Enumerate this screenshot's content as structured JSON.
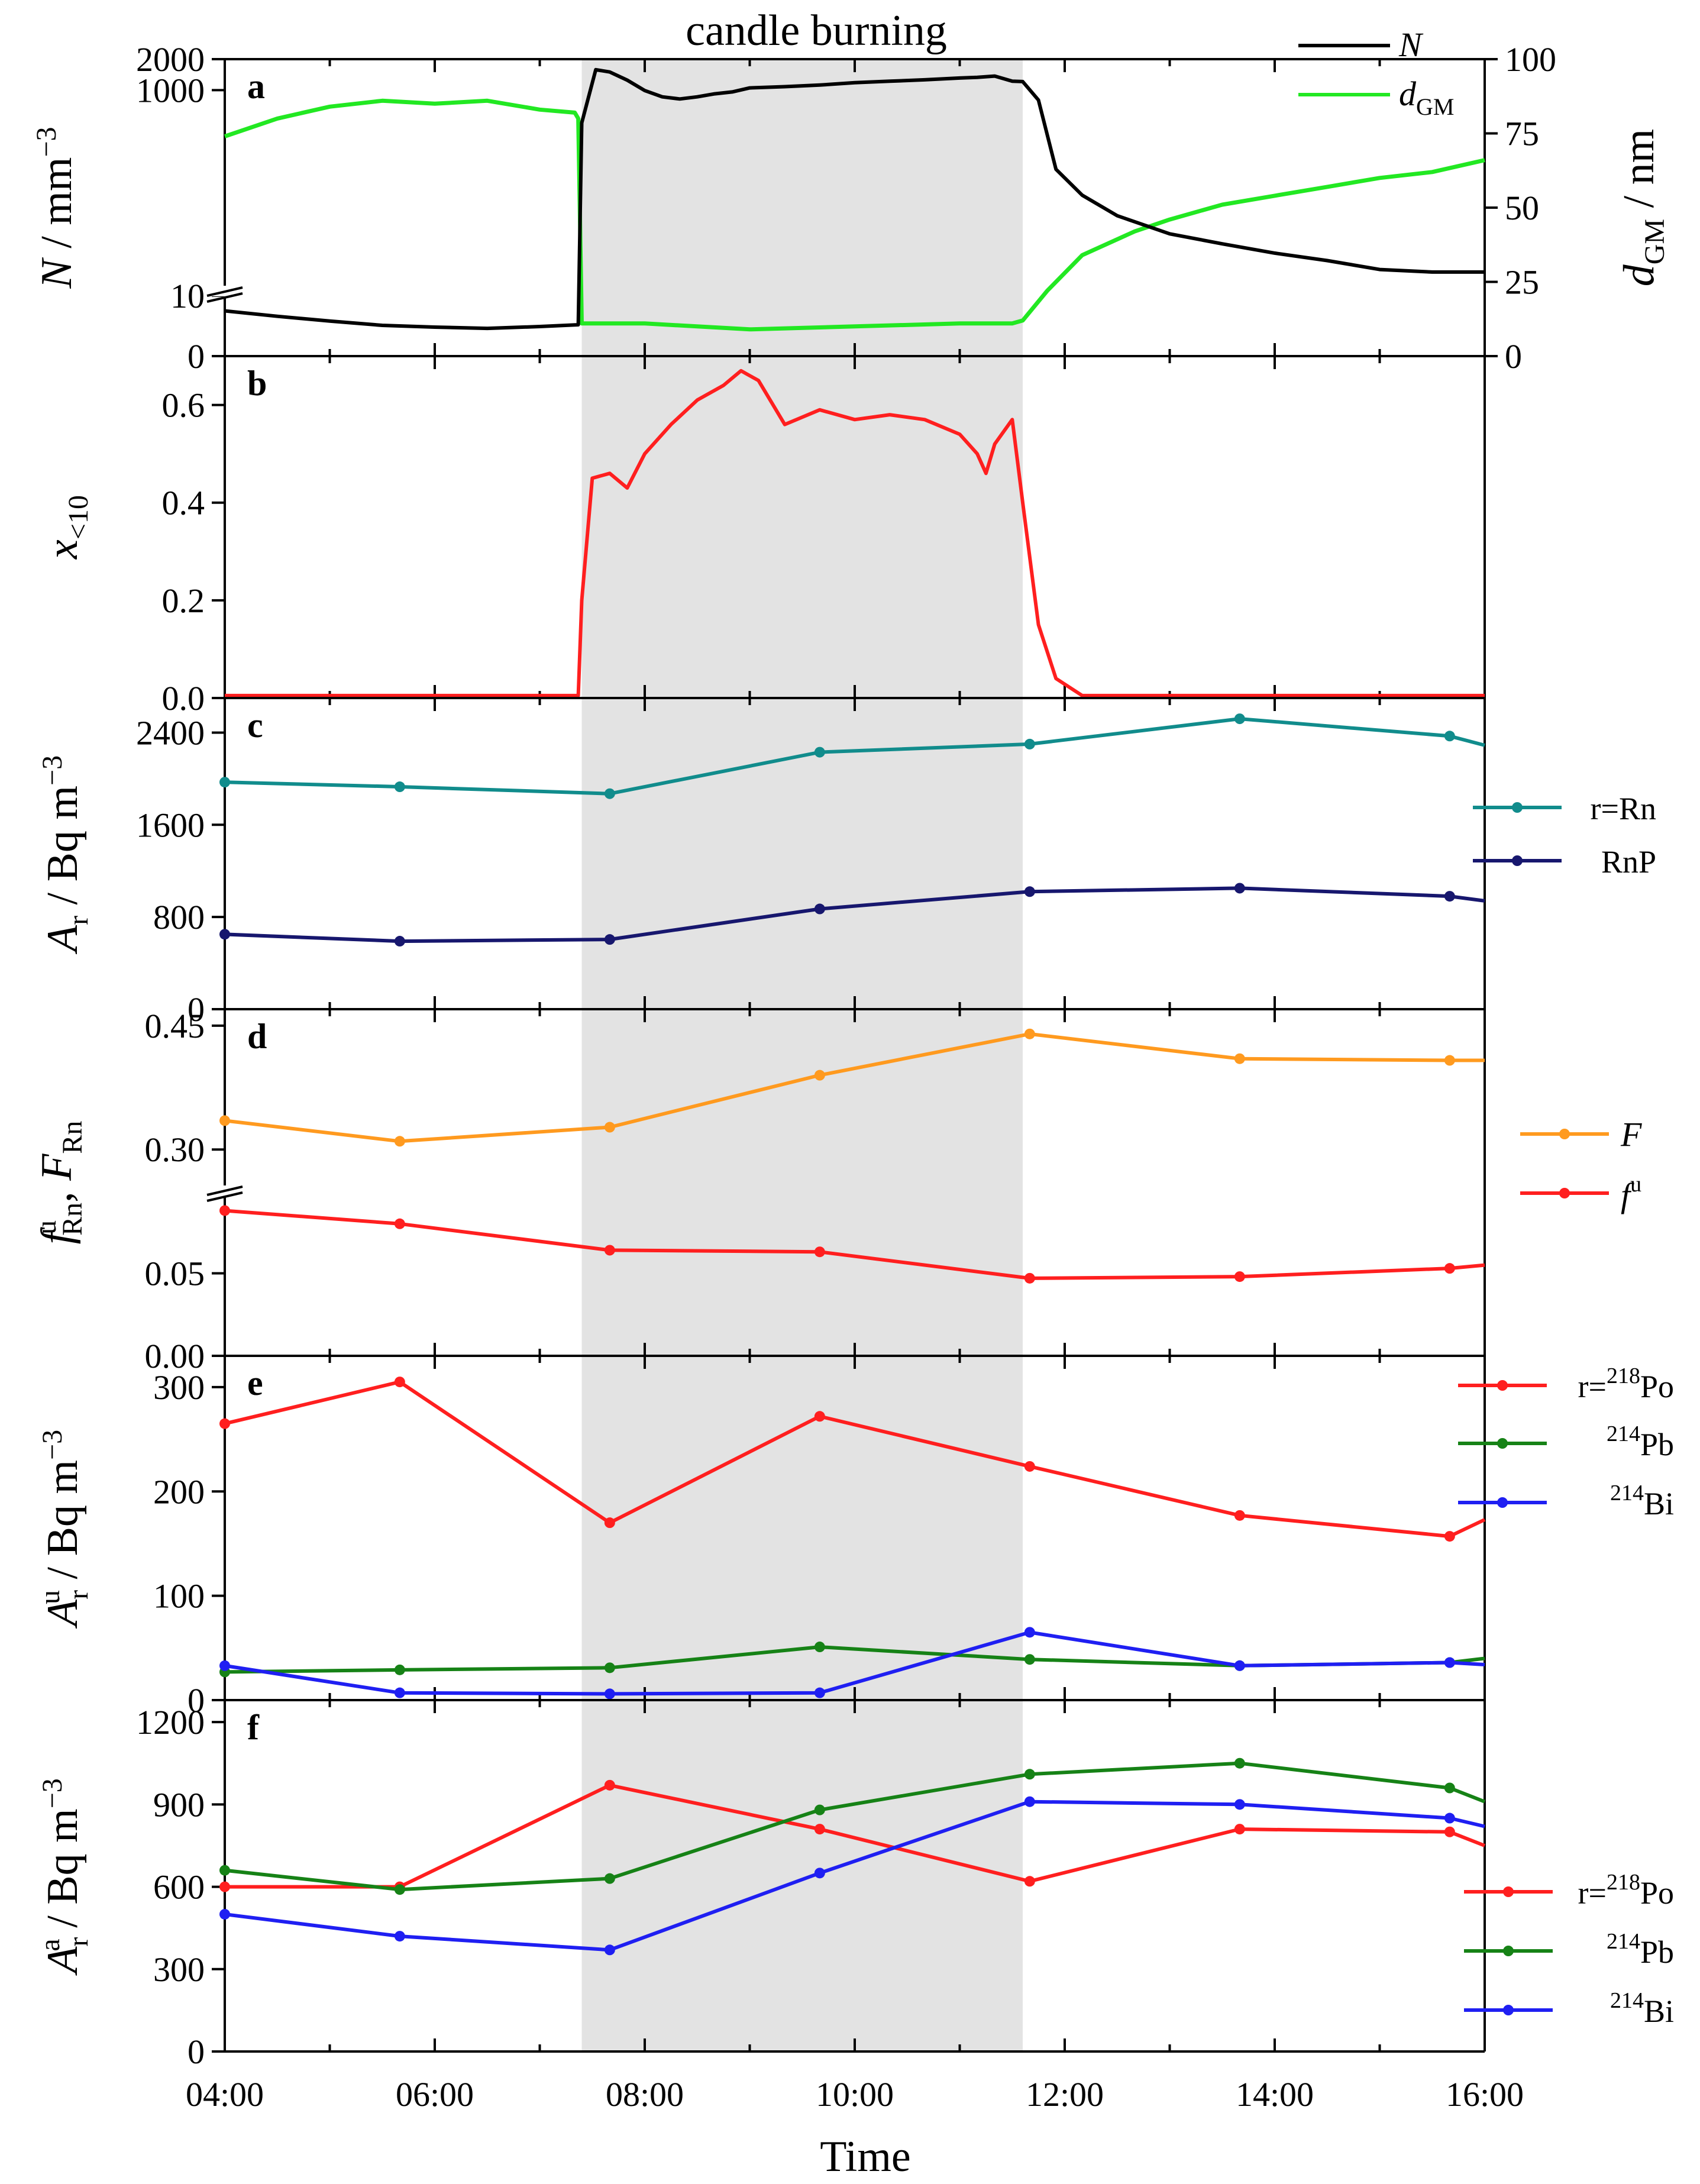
{
  "figure": {
    "shading_label": "candle burning",
    "xlabel": "Time",
    "x_ticks": [
      "04:00",
      "06:00",
      "08:00",
      "10:00",
      "12:00",
      "14:00",
      "16:00"
    ],
    "colors": {
      "shade": "#e3e3e3",
      "black": "#000000",
      "green": "#22e822",
      "red": "#ff1f1f",
      "teal": "#118c8c",
      "navy": "#17176e",
      "orange": "#ff9a1f",
      "dgreen": "#168216",
      "blue": "#1f1ff2"
    }
  },
  "chart_data": [
    {
      "panel": "a",
      "type": "line",
      "xlabel": "Time",
      "x_range": [
        "04:00",
        "16:00"
      ],
      "shaded_interval": [
        "07:24",
        "11:36"
      ],
      "y_axis_break": true,
      "ylabel_left": {
        "main": "N",
        "rest": " / mm",
        "sup": "−3"
      },
      "yticks_left": [
        "0",
        "10",
        "1000",
        "2000"
      ],
      "ylabel_right": {
        "main": "d",
        "sub": "GM",
        "rest": " / nm"
      },
      "yticks_right": [
        "0",
        "25",
        "50",
        "75",
        "100"
      ],
      "ylim_right": [
        0,
        100
      ],
      "legend": [
        {
          "name": "N",
          "color": "#000000"
        },
        {
          "name": "d",
          "sub": "GM",
          "color": "#22e822"
        }
      ],
      "series": [
        {
          "name": "N",
          "axis": "left",
          "note": "values in mm^-3 (0-10 below break, 10-2000 above)",
          "x": [
            "04:00",
            "04:30",
            "05:00",
            "05:30",
            "06:00",
            "06:30",
            "07:00",
            "07:22",
            "07:24",
            "07:32",
            "07:40",
            "07:50",
            "08:00",
            "08:10",
            "08:20",
            "08:30",
            "08:40",
            "08:50",
            "09:00",
            "09:20",
            "09:40",
            "10:00",
            "10:20",
            "10:40",
            "11:00",
            "11:10",
            "11:20",
            "11:30",
            "11:36",
            "11:45",
            "11:55",
            "12:10",
            "12:30",
            "13:00",
            "13:30",
            "14:00",
            "14:30",
            "15:00",
            "15:30",
            "16:00"
          ],
          "values": [
            7.5,
            6.6,
            5.8,
            5.1,
            4.8,
            4.6,
            4.9,
            5.2,
            480,
            1580,
            1500,
            1250,
            990,
            860,
            820,
            860,
            920,
            960,
            1050,
            1080,
            1120,
            1180,
            1220,
            1260,
            1310,
            1330,
            1370,
            1220,
            1210,
            800,
            170,
            95,
            60,
            40,
            32,
            26,
            22,
            18,
            17,
            17
          ]
        },
        {
          "name": "dGM",
          "axis": "right",
          "x": [
            "04:00",
            "04:30",
            "05:00",
            "05:30",
            "06:00",
            "06:30",
            "07:00",
            "07:20",
            "07:22",
            "07:24",
            "07:30",
            "08:00",
            "09:00",
            "10:00",
            "11:00",
            "11:30",
            "11:36",
            "11:50",
            "12:10",
            "12:40",
            "13:00",
            "13:30",
            "14:00",
            "14:30",
            "15:00",
            "15:30",
            "16:00"
          ],
          "values": [
            74,
            80,
            84,
            86,
            85,
            86,
            83,
            82,
            80,
            11,
            11,
            11,
            9,
            10,
            11,
            11,
            12,
            22,
            34,
            42,
            46,
            51,
            54,
            57,
            60,
            62,
            66
          ]
        }
      ]
    },
    {
      "panel": "b",
      "type": "line",
      "ylabel": {
        "main": "x",
        "sub": "<10"
      },
      "ylim": [
        0,
        0.7
      ],
      "yticks": [
        "0.0",
        "0.2",
        "0.4",
        "0.6"
      ],
      "series": [
        {
          "name": "x<10",
          "x": [
            "04:00",
            "05:00",
            "06:00",
            "07:00",
            "07:22",
            "07:24",
            "07:30",
            "07:40",
            "07:50",
            "08:00",
            "08:15",
            "08:30",
            "08:45",
            "08:55",
            "09:05",
            "09:20",
            "09:40",
            "10:00",
            "10:20",
            "10:40",
            "11:00",
            "11:10",
            "11:15",
            "11:20",
            "11:30",
            "11:36",
            "11:45",
            "11:55",
            "12:10",
            "13:00",
            "14:00",
            "15:00",
            "16:00"
          ],
          "values": [
            0.005,
            0.005,
            0.005,
            0.005,
            0.005,
            0.2,
            0.45,
            0.46,
            0.43,
            0.5,
            0.56,
            0.61,
            0.64,
            0.67,
            0.65,
            0.56,
            0.59,
            0.57,
            0.58,
            0.57,
            0.54,
            0.5,
            0.46,
            0.52,
            0.57,
            0.4,
            0.15,
            0.04,
            0.005,
            0.005,
            0.005,
            0.005,
            0.005
          ]
        }
      ]
    },
    {
      "panel": "c",
      "type": "line",
      "ylabel": {
        "main": "A",
        "sub": "r",
        "rest": " / Bq m",
        "sup": "−3"
      },
      "ylim": [
        0,
        2700
      ],
      "yticks": [
        "0",
        "800",
        "1600",
        "2400"
      ],
      "legend": [
        {
          "name": "r=Rn",
          "color": "#118c8c"
        },
        {
          "name": "RnP",
          "color": "#17176e"
        }
      ],
      "series": [
        {
          "name": "r=Rn",
          "x": [
            "04:00",
            "05:40",
            "07:40",
            "09:40",
            "11:40",
            "13:40",
            "15:40",
            "16:00"
          ],
          "values": [
            1970,
            1930,
            1870,
            2230,
            2300,
            2520,
            2370,
            2290
          ]
        },
        {
          "name": "RnP",
          "x": [
            "04:00",
            "05:40",
            "07:40",
            "09:40",
            "11:40",
            "13:40",
            "15:40",
            "16:00"
          ],
          "values": [
            650,
            590,
            605,
            870,
            1020,
            1050,
            980,
            940
          ]
        }
      ]
    },
    {
      "panel": "d",
      "type": "line",
      "y_axis_break": true,
      "ylabel": {
        "main": "f",
        "sup": "u",
        "sub": "Rn",
        "rest2": ", ",
        "main2": "F",
        "sub2": "Rn"
      },
      "yticks": [
        "0.00",
        "0.05",
        "0.30",
        "0.45"
      ],
      "ylim_lower": [
        0,
        0.1
      ],
      "ylim_upper": [
        0.25,
        0.47
      ],
      "legend": [
        {
          "name": "F",
          "color": "#ff9a1f"
        },
        {
          "name": "f",
          "sup": "u",
          "color": "#ff1f1f"
        }
      ],
      "series": [
        {
          "name": "F",
          "x": [
            "04:00",
            "05:40",
            "07:40",
            "09:40",
            "11:40",
            "13:40",
            "15:40",
            "16:00"
          ],
          "values": [
            0.335,
            0.31,
            0.327,
            0.39,
            0.44,
            0.41,
            0.408,
            0.408
          ]
        },
        {
          "name": "fu",
          "x": [
            "04:00",
            "05:40",
            "07:40",
            "09:40",
            "11:40",
            "13:40",
            "15:40",
            "16:00"
          ],
          "values": [
            0.088,
            0.08,
            0.064,
            0.063,
            0.047,
            0.048,
            0.053,
            0.055
          ]
        }
      ]
    },
    {
      "panel": "e",
      "type": "line",
      "ylabel": {
        "main": "A",
        "sub": "r",
        "sup": "u",
        "rest": " / Bq m",
        "sup2": "−3"
      },
      "ylim": [
        0,
        330
      ],
      "yticks": [
        "0",
        "100",
        "200",
        "300"
      ],
      "legend": [
        {
          "prefix": "r=",
          "sup": "218",
          "name": "Po",
          "color": "#ff1f1f"
        },
        {
          "prefix": "",
          "sup": "214",
          "name": "Pb",
          "color": "#168216"
        },
        {
          "prefix": "",
          "sup": "214",
          "name": "Bi",
          "color": "#1f1ff2"
        }
      ],
      "series": [
        {
          "name": "r=218Po",
          "x": [
            "04:00",
            "05:40",
            "07:40",
            "09:40",
            "11:40",
            "13:40",
            "15:40",
            "16:00"
          ],
          "values": [
            265,
            305,
            170,
            272,
            224,
            177,
            157,
            173
          ]
        },
        {
          "name": "214Pb",
          "x": [
            "04:00",
            "05:40",
            "07:40",
            "09:40",
            "11:40",
            "13:40",
            "15:40",
            "16:00"
          ],
          "values": [
            27,
            29,
            31,
            51,
            39,
            33,
            36,
            40
          ]
        },
        {
          "name": "214Bi",
          "x": [
            "04:00",
            "05:40",
            "07:40",
            "09:40",
            "11:40",
            "13:40",
            "15:40",
            "16:00"
          ],
          "values": [
            33,
            7,
            6,
            7,
            65,
            33,
            36,
            34
          ]
        }
      ]
    },
    {
      "panel": "f",
      "type": "line",
      "ylabel": {
        "main": "A",
        "sub": "r",
        "sup": "a",
        "rest": " / Bq m",
        "sup2": "−3"
      },
      "ylim": [
        0,
        1280
      ],
      "yticks": [
        "0",
        "300",
        "600",
        "900",
        "1200"
      ],
      "legend": [
        {
          "prefix": "r=",
          "sup": "218",
          "name": "Po",
          "color": "#ff1f1f"
        },
        {
          "prefix": "",
          "sup": "214",
          "name": "Pb",
          "color": "#168216"
        },
        {
          "prefix": "",
          "sup": "214",
          "name": "Bi",
          "color": "#1f1ff2"
        }
      ],
      "series": [
        {
          "name": "r=218Po",
          "x": [
            "04:00",
            "05:40",
            "07:40",
            "09:40",
            "11:40",
            "13:40",
            "15:40",
            "16:00"
          ],
          "values": [
            600,
            600,
            970,
            810,
            620,
            810,
            800,
            750
          ]
        },
        {
          "name": "214Pb",
          "x": [
            "04:00",
            "05:40",
            "07:40",
            "09:40",
            "11:40",
            "13:40",
            "15:40",
            "16:00"
          ],
          "values": [
            660,
            590,
            630,
            880,
            1010,
            1050,
            960,
            910
          ]
        },
        {
          "name": "214Bi",
          "x": [
            "04:00",
            "05:40",
            "07:40",
            "09:40",
            "11:40",
            "13:40",
            "15:40",
            "16:00"
          ],
          "values": [
            500,
            420,
            370,
            650,
            910,
            900,
            850,
            820
          ]
        }
      ]
    }
  ]
}
